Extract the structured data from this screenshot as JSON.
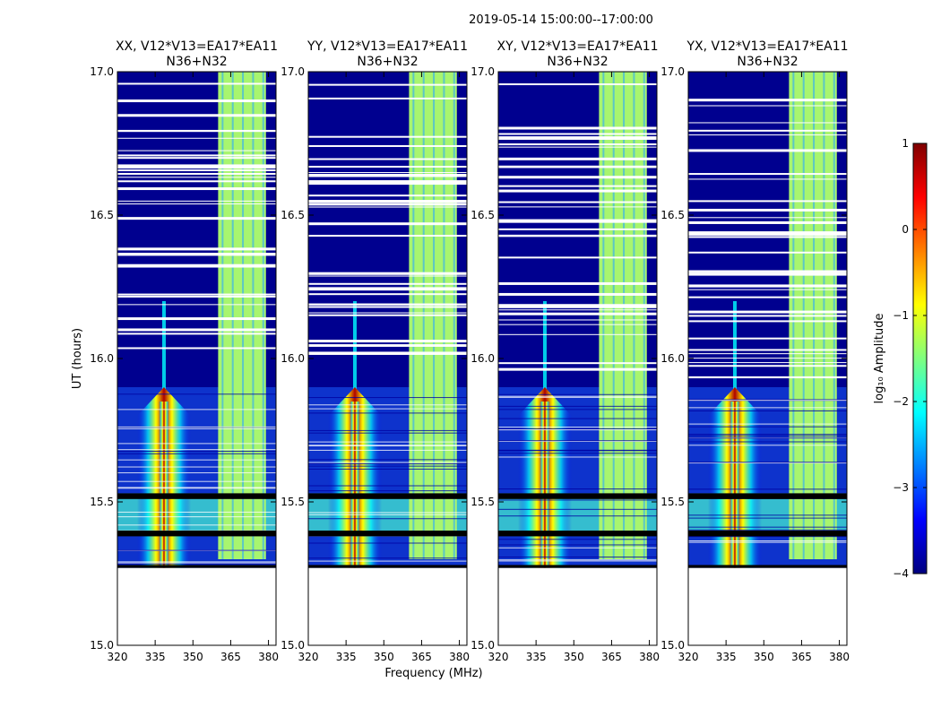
{
  "suptitle": "2019-05-14  15:00:00--17:00:00",
  "chart_data": {
    "type": "heatmap",
    "ylabel": "UT (hours)",
    "xlabel": "Frequency (MHz)",
    "xlim": [
      320,
      383
    ],
    "ylim": [
      15.0,
      17.0
    ],
    "xticks": [
      320,
      335,
      350,
      365,
      380
    ],
    "xtick_labels": [
      "320",
      "335",
      "350",
      "365",
      "380"
    ],
    "yticks": [
      15.0,
      15.5,
      16.0,
      16.5,
      17.0
    ],
    "ytick_labels": [
      "15.0",
      "15.5",
      "16.0",
      "16.5",
      "17.0"
    ],
    "data_start_ut": 15.27,
    "strong_line_mhz": 338.5,
    "rfi_band_mhz": [
      360,
      379
    ],
    "flagged_ut_bands": [
      [
        15.27,
        15.28
      ],
      [
        15.38,
        15.4
      ],
      [
        15.51,
        15.53
      ]
    ],
    "panels": [
      {
        "title_line1": "XX, V12*V13=EA17*EA11",
        "title_line2": "N36+N32"
      },
      {
        "title_line1": "YY, V12*V13=EA17*EA11",
        "title_line2": "N36+N32"
      },
      {
        "title_line1": "XY, V12*V13=EA17*EA11",
        "title_line2": "N36+N32"
      },
      {
        "title_line1": "YX, V12*V13=EA17*EA11",
        "title_line2": "N36+N32"
      }
    ],
    "colorbar": {
      "label": "log₁₀ Amplitude",
      "vmin": -4,
      "vmax": 1,
      "ticks": [
        1,
        0,
        -1,
        -2,
        -3,
        -4
      ],
      "tick_labels": [
        "1",
        "0",
        "−1",
        "−2",
        "−3",
        "−4"
      ],
      "colormap": "jet"
    }
  },
  "colors": {
    "background": "#00008f",
    "band": "#a8f56e",
    "line_core": "#b00000",
    "flag": "#000000"
  }
}
